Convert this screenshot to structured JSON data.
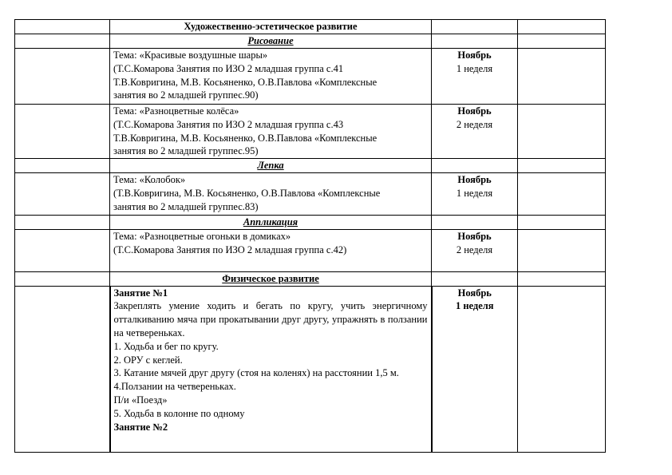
{
  "table": {
    "section_art": "Художественно-эстетическое развитие",
    "sub_drawing": "Рисование",
    "drawing_rows": [
      {
        "lines": [
          "Тема: «Красивые воздушные шары»",
          "(Т.С.Комарова Занятия по ИЗО 2 младшая группа с.41",
          "Т.В.Ковригина, М.В. Косьяненко, О.В.Павлова «Комплексные",
          "занятия во 2 младшей группес.90)"
        ],
        "month": "Ноябрь",
        "week": "1 неделя"
      },
      {
        "lines": [
          "Тема: «Разноцветные колёса»",
          "(Т.С.Комарова Занятия по ИЗО 2 младшая группа с.43",
          "Т.В.Ковригина, М.В. Косьяненко, О.В.Павлова «Комплексные",
          "занятия во 2 младшей группес.95)"
        ],
        "month": "Ноябрь",
        "week": "2 неделя"
      }
    ],
    "sub_modeling": "Лепка",
    "modeling_row": {
      "lines": [
        "Тема: «Колобок»",
        "(Т.В.Ковригина, М.В. Косьяненко, О.В.Павлова «Комплексные",
        "занятия во 2 младшей группес.83)"
      ],
      "month": "Ноябрь",
      "week": "1 неделя"
    },
    "sub_applique": "Аппликация",
    "applique_row": {
      "lines": [
        "Тема: «Разноцветные огоньки в домиках»",
        "(Т.С.Комарова Занятия по ИЗО 2 младшая группа с.42)"
      ],
      "month": "Ноябрь",
      "week": "2 неделя"
    },
    "section_phys": "Физическое развитие",
    "phys_row": {
      "title": "Занятие №1",
      "goal": "Закреплять умение ходить и бегать по кругу, учить энергичному отталкиванию мяча при прокатывании друг другу, упражнять в ползании на четвереньках.",
      "steps": [
        "1. Ходьба и бег по кругу.",
        "2. ОРУ с кеглей.",
        "3. Катание мячей друг другу (стоя на коленях) на расстоянии 1,5 м.",
        "4.Ползании на четвереньках.",
        "П/и «Поезд»",
        "5. Ходьба в колонне по одному"
      ],
      "next_title": "Занятие №2",
      "month": "Ноябрь",
      "week": "1 неделя"
    }
  }
}
